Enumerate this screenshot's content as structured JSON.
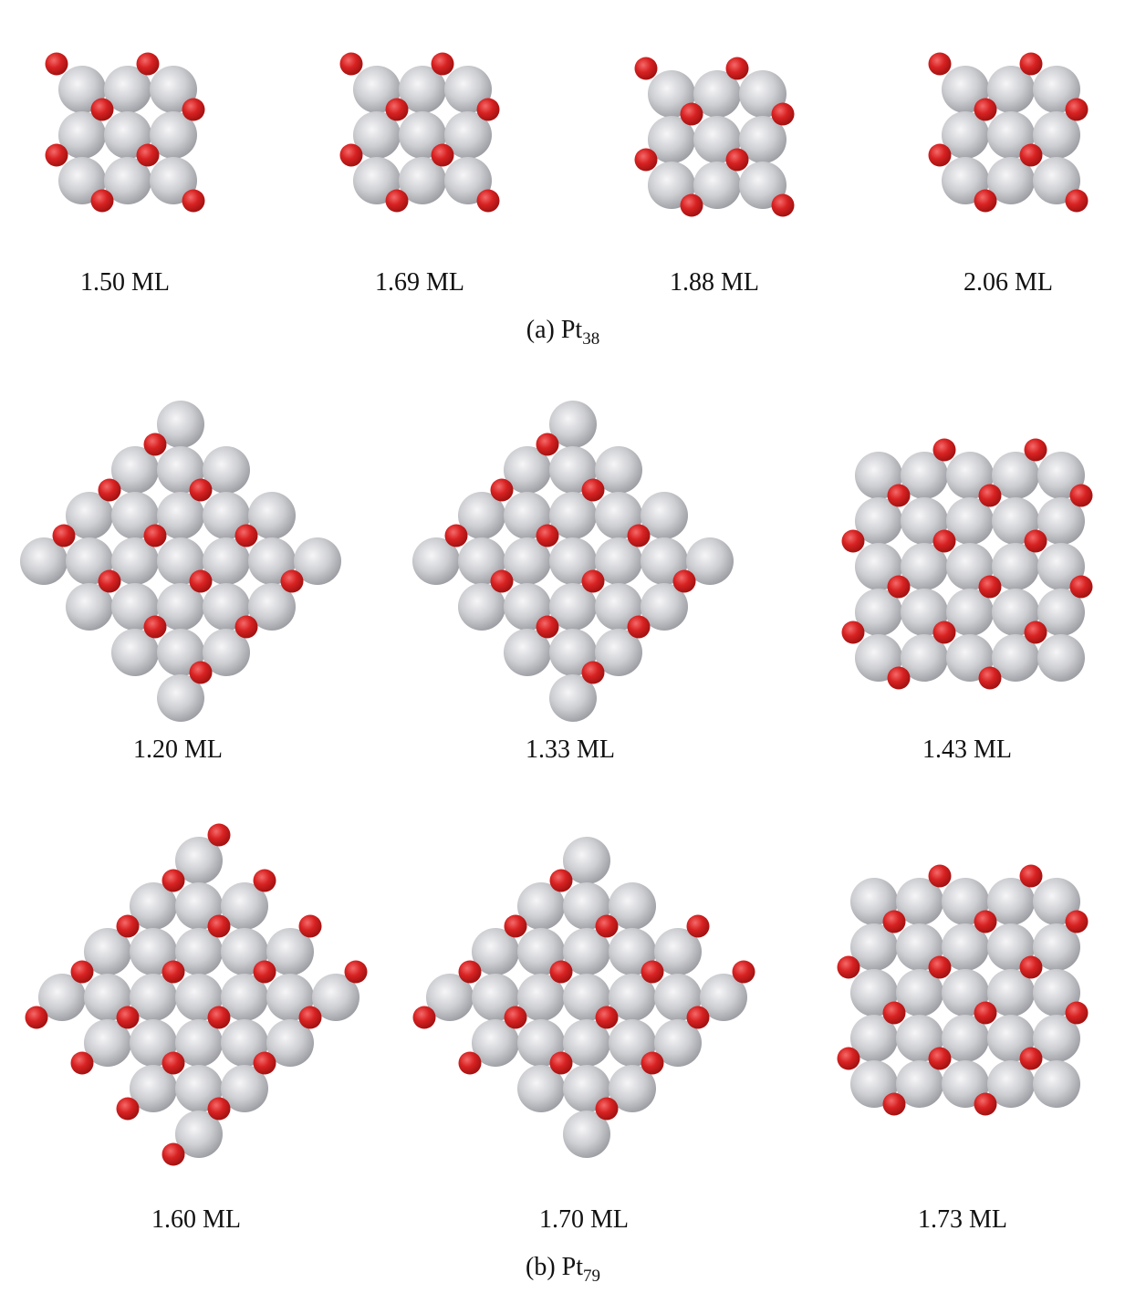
{
  "subfigures": [
    {
      "panels": [
        {
          "label": "1.50 ML"
        },
        {
          "label": "1.69 ML"
        },
        {
          "label": "1.88 ML"
        },
        {
          "label": "2.06 ML"
        }
      ],
      "caption": {
        "text": "(a) Pt",
        "subscript": "38"
      }
    },
    {
      "panels": [
        {
          "label": "1.20 ML"
        },
        {
          "label": "1.33 ML"
        },
        {
          "label": "1.43 ML"
        },
        {
          "label": "1.60 ML"
        },
        {
          "label": "1.70 ML"
        },
        {
          "label": "1.73 ML"
        }
      ],
      "caption": {
        "text": "(b) Pt",
        "subscript": "79"
      }
    }
  ]
}
